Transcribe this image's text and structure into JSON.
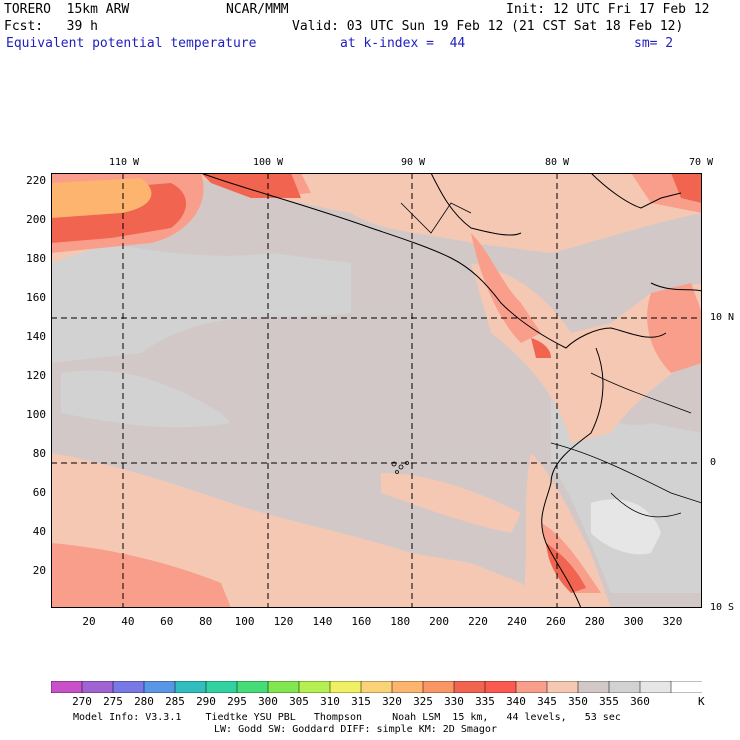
{
  "header": {
    "model_name": "TORERO  15km ARW",
    "center": "NCAR/MMM",
    "init": "Init: 12 UTC Fri 17 Feb 12",
    "fcst": "Fcst:   39 h",
    "valid": "Valid: 03 UTC Sun 19 Feb 12 (21 CST Sat 18 Feb 12)",
    "field": "Equivalent potential temperature",
    "level": "at k-index =  44",
    "smoothing": "sm= 2"
  },
  "map": {
    "y_ticks": [
      "220",
      "200",
      "180",
      "160",
      "140",
      "120",
      "100",
      "80",
      "60",
      "40",
      "20"
    ],
    "x_ticks": [
      "20",
      "40",
      "60",
      "80",
      "100",
      "120",
      "140",
      "160",
      "180",
      "200",
      "220",
      "240",
      "260",
      "280",
      "300",
      "320"
    ],
    "lon_labels": [
      "110 W",
      "100 W",
      "90 W",
      "80 W",
      "70 W"
    ],
    "lat_labels": [
      "10 N",
      "0",
      "10 S"
    ]
  },
  "colorbar": {
    "labels": [
      "270",
      "275",
      "280",
      "285",
      "290",
      "295",
      "300",
      "305",
      "310",
      "315",
      "320",
      "325",
      "330",
      "335",
      "340",
      "345",
      "350",
      "355",
      "360"
    ],
    "unit": "K",
    "colors": [
      "#c850c8",
      "#a064d2",
      "#7878e6",
      "#5a96e6",
      "#32bebe",
      "#32d2a0",
      "#46dc78",
      "#82e650",
      "#b4f050",
      "#f0f064",
      "#fad278",
      "#fcb46e",
      "#fa9664",
      "#f06450",
      "#fa5a50",
      "#fa9e8c",
      "#f5c8b4",
      "#d2c8c8",
      "#d2d2d2",
      "#e6e6e6",
      "#ffffff"
    ]
  },
  "footer": {
    "line1": "Model Info: V3.3.1    Tiedtke YSU PBL   Thompson     Noah LSM  15 km,   44 levels,   53 sec",
    "line2": "LW: Godd SW: Goddard DIFF: simple KM: 2D Smagor"
  }
}
